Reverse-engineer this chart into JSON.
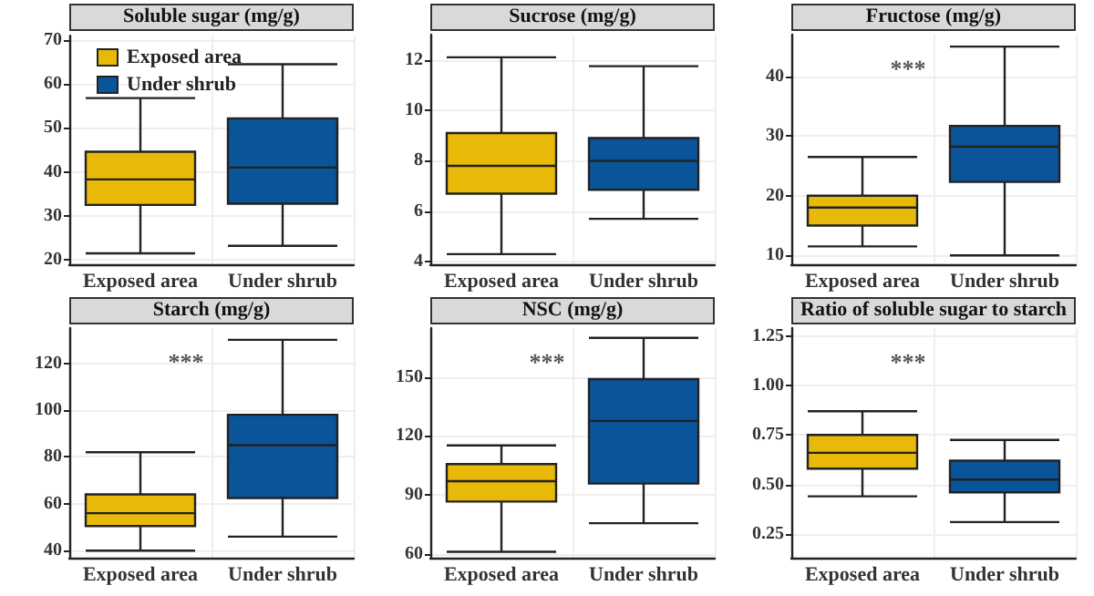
{
  "chart_data": [
    {
      "type": "box",
      "title": "Soluble sugar (mg/g)",
      "categories": [
        "Exposed area",
        "Under shrub"
      ],
      "ylim": [
        19,
        71
      ],
      "yticks": [
        20,
        30,
        40,
        50,
        60,
        70
      ],
      "grid": true,
      "legend": "top left",
      "series": [
        {
          "name": "Exposed area",
          "color": "#e8b909",
          "boxes": [
            {
              "low": 21.5,
              "q1": 32.5,
              "median": 38.3,
              "q3": 44.6,
              "high": 56.8
            },
            null
          ]
        },
        {
          "name": "Under shrub",
          "color": "#0a5499",
          "boxes": [
            null,
            {
              "low": 23.2,
              "q1": 32.8,
              "median": 41,
              "q3": 52.2,
              "high": 64.5
            }
          ]
        }
      ]
    },
    {
      "type": "box",
      "title": "Sucrose (mg/g)",
      "categories": [
        "Exposed area",
        "Under shrub"
      ],
      "ylim": [
        3.9,
        13
      ],
      "yticks": [
        4,
        6,
        8,
        10,
        12
      ],
      "grid": true,
      "series": [
        {
          "color": "#e8b909",
          "boxes": [
            {
              "low": 4.3,
              "q1": 6.7,
              "median": 7.8,
              "q3": 9.1,
              "high": 12.1
            },
            null
          ]
        },
        {
          "color": "#0a5499",
          "boxes": [
            null,
            {
              "low": 5.7,
              "q1": 6.85,
              "median": 8,
              "q3": 8.9,
              "high": 11.75
            }
          ]
        }
      ]
    },
    {
      "type": "box",
      "title": "Fructose (mg/g)",
      "categories": [
        "Exposed area",
        "Under shrub"
      ],
      "ylim": [
        8.5,
        47
      ],
      "yticks": [
        10,
        20,
        30,
        40
      ],
      "grid": true,
      "annotations": [
        "***"
      ],
      "series": [
        {
          "color": "#e8b909",
          "boxes": [
            {
              "low": 11.5,
              "q1": 15,
              "median": 18,
              "q3": 20,
              "high": 26.5
            },
            null
          ]
        },
        {
          "color": "#0a5499",
          "boxes": [
            null,
            {
              "low": 10,
              "q1": 22.3,
              "median": 28.2,
              "q3": 31.7,
              "high": 45
            }
          ]
        }
      ]
    },
    {
      "type": "box",
      "title": "Starch (mg/g)",
      "categories": [
        "Exposed area",
        "Under shrub"
      ],
      "ylim": [
        37,
        135
      ],
      "yticks": [
        40,
        60,
        80,
        100,
        120
      ],
      "grid": true,
      "annotations": [
        "***"
      ],
      "series": [
        {
          "color": "#e8b909",
          "boxes": [
            {
              "low": 40,
              "q1": 50.5,
              "median": 56,
              "q3": 64,
              "high": 82
            },
            null
          ]
        },
        {
          "color": "#0a5499",
          "boxes": [
            null,
            {
              "low": 46,
              "q1": 62.5,
              "median": 85,
              "q3": 98,
              "high": 130
            }
          ]
        }
      ]
    },
    {
      "type": "box",
      "title": "NSC (mg/g)",
      "categories": [
        "Exposed area",
        "Under shrub"
      ],
      "ylim": [
        58,
        175
      ],
      "yticks": [
        60,
        90,
        120,
        150
      ],
      "grid": true,
      "annotations": [
        "***"
      ],
      "series": [
        {
          "color": "#e8b909",
          "boxes": [
            {
              "low": 61,
              "q1": 86.6,
              "median": 97,
              "q3": 105.7,
              "high": 115.2
            },
            null
          ]
        },
        {
          "color": "#0a5499",
          "boxes": [
            null,
            {
              "low": 75.6,
              "q1": 95.8,
              "median": 127.7,
              "q3": 149,
              "high": 170
            }
          ]
        }
      ]
    },
    {
      "type": "box",
      "title": "Ratio of soluble sugar to starch",
      "categories": [
        "Exposed area",
        "Under shrub"
      ],
      "ylim": [
        0.13,
        1.29
      ],
      "yticks": [
        {
          "value": 0.25,
          "label": "0.25"
        },
        {
          "value": 0.5,
          "label": "0.50"
        },
        {
          "value": 0.75,
          "label": "0.75"
        },
        {
          "value": 1,
          "label": "1.00"
        },
        {
          "value": 1.25,
          "label": "1.25"
        }
      ],
      "grid": true,
      "annotations": [
        "***"
      ],
      "series": [
        {
          "color": "#e8b909",
          "boxes": [
            {
              "low": 0.44,
              "q1": 0.58,
              "median": 0.66,
              "q3": 0.75,
              "high": 0.87
            },
            null
          ]
        },
        {
          "color": "#0a5499",
          "boxes": [
            null,
            {
              "low": 0.31,
              "q1": 0.46,
              "median": 0.525,
              "q3": 0.62,
              "high": 0.725
            }
          ]
        }
      ]
    }
  ]
}
